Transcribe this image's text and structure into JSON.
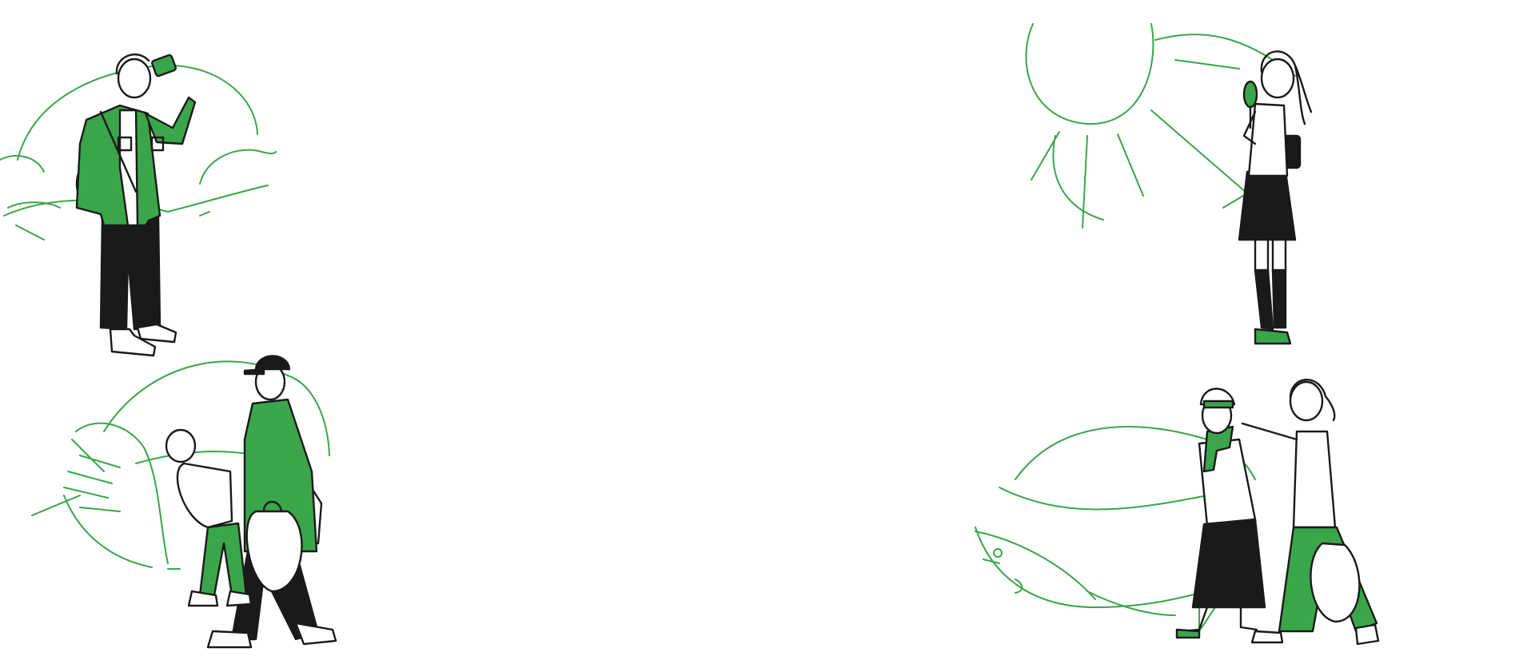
{
  "palette": {
    "accent": "#3aa54a",
    "ink": "#1a1a1a",
    "background": "#ffffff"
  },
  "scenes": [
    {
      "key": "man-drinking",
      "icon": "man-drinking-icon"
    },
    {
      "key": "girl-with-fan",
      "icon": "girl-with-fan-icon"
    },
    {
      "key": "father-and-child",
      "icon": "father-and-child-icon"
    },
    {
      "key": "elder-and-woman",
      "icon": "elder-and-woman-icon"
    }
  ]
}
